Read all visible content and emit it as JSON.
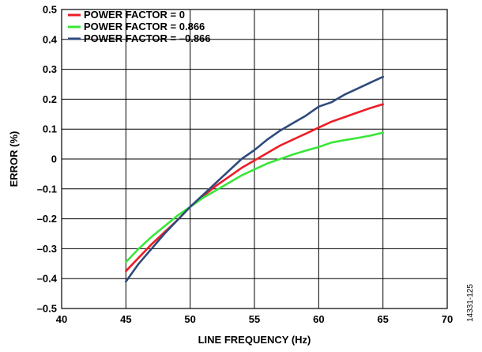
{
  "chart_data": {
    "type": "line",
    "xlabel": "LINE FREQUENCY (Hz)",
    "ylabel": "ERROR (%)",
    "xlim": [
      40,
      70
    ],
    "ylim": [
      -0.5,
      0.5
    ],
    "x_ticks": [
      40,
      45,
      50,
      55,
      60,
      65,
      70
    ],
    "y_ticks": [
      -0.5,
      -0.4,
      -0.3,
      -0.2,
      -0.1,
      0,
      0.1,
      0.2,
      0.3,
      0.4,
      0.5
    ],
    "x_tick_labels": [
      "40",
      "45",
      "50",
      "55",
      "60",
      "65",
      "70"
    ],
    "y_tick_labels": [
      "–0.5",
      "–0.4",
      "–0.3",
      "–0.2",
      "–0.1",
      "0",
      "0.1",
      "0.2",
      "0.3",
      "0.4",
      "0.5"
    ],
    "grid": true,
    "legend_position": "top-left",
    "series": [
      {
        "name": "POWER FACTOR = 0",
        "color": "#ee1c25",
        "x": [
          45,
          46,
          47,
          48,
          49,
          50,
          51,
          52,
          53,
          54,
          55,
          56,
          57,
          58,
          59,
          60,
          61,
          62,
          63,
          64,
          65
        ],
        "y": [
          -0.375,
          -0.33,
          -0.285,
          -0.245,
          -0.205,
          -0.16,
          -0.125,
          -0.09,
          -0.06,
          -0.03,
          -0.005,
          0.02,
          0.045,
          0.065,
          0.085,
          0.105,
          0.125,
          0.14,
          0.155,
          0.17,
          0.183
        ]
      },
      {
        "name": "POWER FACTOR = 0.866",
        "color": "#39e639",
        "x": [
          45,
          46,
          47,
          48,
          49,
          50,
          51,
          52,
          53,
          54,
          55,
          56,
          57,
          58,
          59,
          60,
          61,
          62,
          63,
          64,
          65
        ],
        "y": [
          -0.345,
          -0.3,
          -0.26,
          -0.225,
          -0.19,
          -0.16,
          -0.13,
          -0.105,
          -0.08,
          -0.055,
          -0.035,
          -0.015,
          0.0,
          0.015,
          0.028,
          0.04,
          0.055,
          0.063,
          0.07,
          0.078,
          0.088
        ]
      },
      {
        "name": "POWER FACTOR = –0.866",
        "color": "#2e4a7d",
        "x": [
          45,
          46,
          47,
          48,
          49,
          50,
          51,
          52,
          53,
          54,
          55,
          56,
          57,
          58,
          59,
          60,
          61,
          62,
          63,
          64,
          65
        ],
        "y": [
          -0.41,
          -0.35,
          -0.3,
          -0.25,
          -0.205,
          -0.16,
          -0.12,
          -0.08,
          -0.04,
          0.0,
          0.03,
          0.065,
          0.095,
          0.12,
          0.145,
          0.175,
          0.19,
          0.215,
          0.235,
          0.255,
          0.275
        ]
      }
    ]
  },
  "figure_id": "14331-125"
}
